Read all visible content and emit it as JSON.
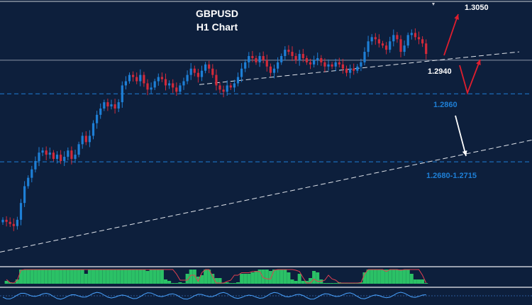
{
  "chart_data": {
    "type": "candlestick",
    "symbol": "GBPUSD",
    "timeframe": "H1 Chart",
    "title_line1": "GBPUSD",
    "title_line2": "H1 Chart",
    "price_range": [
      1.2455,
      1.3075
    ],
    "levels": [
      {
        "price": 1.294,
        "label": "1.2940",
        "style": "solid",
        "color": "#8a94a6"
      },
      {
        "price": 1.286,
        "label": "1.2860",
        "style": "dashed",
        "color": "#1e7fd6"
      },
      {
        "price": 1.2698,
        "label": "1.2680-1.2715",
        "style": "dashed",
        "color": "#1e7fd6"
      }
    ],
    "target_label": "1.3050",
    "series_close": [
      1.256,
      1.2555,
      1.255,
      1.2545,
      1.256,
      1.26,
      1.264,
      1.266,
      1.268,
      1.27,
      1.272,
      1.2725,
      1.2715,
      1.272,
      1.2705,
      1.2715,
      1.27,
      1.271,
      1.2725,
      1.2705,
      1.2715,
      1.274,
      1.276,
      1.2745,
      1.276,
      1.279,
      1.281,
      1.2825,
      1.284,
      1.283,
      1.2835,
      1.2825,
      1.284,
      1.288,
      1.289,
      1.2905,
      1.29,
      1.289,
      1.2905,
      1.2885,
      1.287,
      1.2875,
      1.289,
      1.29,
      1.2895,
      1.288,
      1.2885,
      1.2875,
      1.2865,
      1.288,
      1.289,
      1.2905,
      1.292,
      1.291,
      1.29,
      1.2915,
      1.293,
      1.292,
      1.2905,
      1.288,
      1.287,
      1.2865,
      1.288,
      1.2875,
      1.2885,
      1.29,
      1.292,
      1.2935,
      1.295,
      1.2945,
      1.2935,
      1.295,
      1.294,
      1.2925,
      1.291,
      1.292,
      1.2935,
      1.295,
      1.2965,
      1.296,
      1.295,
      1.294,
      1.2955,
      1.2945,
      1.2935,
      1.293,
      1.294,
      1.2945,
      1.2935,
      1.2925,
      1.293,
      1.2925,
      1.2935,
      1.293,
      1.292,
      1.291,
      1.292,
      1.2915,
      1.2925,
      1.2935,
      1.296,
      1.2985,
      1.2995,
      1.299,
      1.298,
      1.2975,
      1.2965,
      1.2985,
      1.3,
      1.299,
      1.296,
      1.2975,
      1.3,
      1.3005,
      1.2995,
      1.299,
      1.298,
      1.2955
    ],
    "trendlines": [
      {
        "from": [
          30,
          1.2882
        ],
        "to": [
          118,
          1.296
        ],
        "style": "dashed"
      },
      {
        "from": [
          0,
          1.2483
        ],
        "to": [
          118,
          1.275
        ],
        "style": "dashed"
      }
    ],
    "arrows": [
      {
        "color": "#e01e2e",
        "path": [
          [
            1.295
          ],
          [
            1.3035
          ]
        ]
      },
      {
        "color": "#e01e2e",
        "path": "down-up"
      },
      {
        "color": "#ffffff",
        "path": "down"
      }
    ]
  },
  "colors": {
    "background": "#0d1f3c",
    "bull": "#1e7fd6",
    "bear": "#d22a3a",
    "histogram": "#2fd36a",
    "text": "#ffffff",
    "level_blue": "#1e7fd6"
  }
}
